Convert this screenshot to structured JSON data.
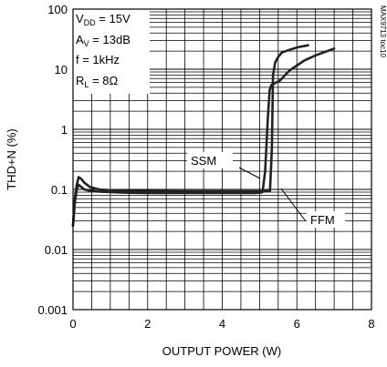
{
  "chart_data": {
    "type": "line",
    "title": "",
    "xlabel": "OUTPUT POWER (W)",
    "ylabel": "THD+N (%)",
    "xlim": [
      0,
      8
    ],
    "ylim": [
      0.001,
      100
    ],
    "yscale": "log",
    "grid": true,
    "x_ticks": [
      "0",
      "2",
      "4",
      "6",
      "8"
    ],
    "y_ticks": [
      "0.001",
      "0.01",
      "0.1",
      "1",
      "10",
      "100"
    ],
    "conditions": {
      "vdd_sym": "V",
      "vdd_sub": "DD",
      "vdd_val": " = 15V",
      "av_sym": "A",
      "av_sub": "V",
      "av_val": " = 13dB",
      "freq": "f = 1kHz",
      "rl_sym": "R",
      "rl_sub": "L",
      "rl_val": " = 8Ω"
    },
    "side_code": "MAX9713 toc10",
    "series": [
      {
        "name": "SSM",
        "x": [
          0.0,
          0.05,
          0.1,
          0.15,
          0.22,
          0.3,
          0.45,
          0.7,
          1.0,
          1.5,
          2.0,
          3.0,
          4.0,
          4.8,
          5.0,
          5.08,
          5.15,
          5.22,
          5.27,
          5.32,
          5.4,
          5.55,
          5.8,
          6.2,
          6.5,
          7.0
        ],
        "y": [
          0.025,
          0.06,
          0.1,
          0.12,
          0.11,
          0.1,
          0.095,
          0.092,
          0.09,
          0.088,
          0.087,
          0.087,
          0.087,
          0.087,
          0.088,
          0.09,
          0.2,
          1.5,
          4.5,
          5.5,
          5.8,
          6.5,
          9.5,
          14,
          17,
          22
        ]
      },
      {
        "name": "FFM",
        "x": [
          0.0,
          0.05,
          0.1,
          0.15,
          0.22,
          0.3,
          0.45,
          0.7,
          1.0,
          1.5,
          2.0,
          3.0,
          4.0,
          4.8,
          5.1,
          5.28,
          5.33,
          5.36,
          5.42,
          5.5,
          5.6,
          5.8,
          6.0,
          6.3
        ],
        "y": [
          0.025,
          0.07,
          0.12,
          0.16,
          0.15,
          0.13,
          0.11,
          0.1,
          0.097,
          0.095,
          0.094,
          0.093,
          0.093,
          0.093,
          0.093,
          0.094,
          0.5,
          8,
          13,
          16,
          19,
          21,
          23,
          25
        ]
      }
    ],
    "annotations": [
      {
        "text": "SSM",
        "series": "SSM"
      },
      {
        "text": "FFM",
        "series": "FFM"
      }
    ]
  }
}
